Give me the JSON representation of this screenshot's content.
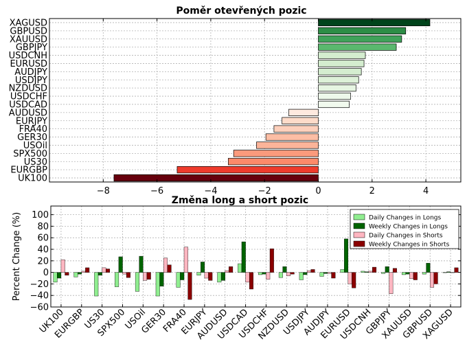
{
  "chart_data": [
    {
      "type": "bar",
      "orientation": "horizontal",
      "title": "Poměr otevřených pozic",
      "categories": [
        "XAGUSD",
        "GBPUSD",
        "XAUUSD",
        "GBPJPY",
        "USDCNH",
        "EURUSD",
        "AUDJPY",
        "USDJPY",
        "NZDUSD",
        "USDCHF",
        "USDCAD",
        "AUDUSD",
        "EURJPY",
        "FRA40",
        "GER30",
        "USOil",
        "SPX500",
        "US30",
        "EURGBP",
        "UK100"
      ],
      "values": [
        4.15,
        3.25,
        3.1,
        2.9,
        1.75,
        1.7,
        1.6,
        1.5,
        1.4,
        1.2,
        1.15,
        -1.1,
        -1.35,
        -1.65,
        -1.95,
        -2.3,
        -3.15,
        -3.35,
        -5.25,
        -7.6
      ],
      "colors": [
        "#00441b",
        "#2d8d46",
        "#40a25a",
        "#5ab86e",
        "#d4edcf",
        "#d4edcf",
        "#d4edcf",
        "#ddf1d8",
        "#e6f5e2",
        "#edf8ea",
        "#f1faee",
        "#fee9df",
        "#fddbc9",
        "#fdd0bc",
        "#fcbea5",
        "#fcb499",
        "#fb9a7c",
        "#fc8a6a",
        "#ef3b2c",
        "#67000d"
      ],
      "xlim": [
        -10,
        5.3
      ],
      "xticks": [
        -8,
        -6,
        -4,
        -2,
        0,
        2,
        4
      ],
      "xtick_labels": [
        "−8",
        "−6",
        "−4",
        "−2",
        "0",
        "2",
        "4"
      ],
      "grid": true
    },
    {
      "type": "bar",
      "title": "Změna long a short pozic",
      "ylabel": "Percent Change (%)",
      "ylim": [
        -60,
        115
      ],
      "yticks": [
        -60,
        -40,
        -20,
        0,
        20,
        40,
        60,
        80,
        100
      ],
      "ytick_labels": [
        "−60",
        "−40",
        "−20",
        "0",
        "20",
        "40",
        "60",
        "80",
        "100"
      ],
      "categories": [
        "UK100",
        "EURGBP",
        "US30",
        "SPX500",
        "USOil",
        "GER30",
        "FRA40",
        "EURJPY",
        "AUDUSD",
        "USDCAD",
        "USDCHF",
        "NZDUSD",
        "USDJPY",
        "AUDJPY",
        "EURUSD",
        "USDCNH",
        "GBPJPY",
        "XAUUSD",
        "GBPUSD",
        "XAGUSD"
      ],
      "series": [
        {
          "name": "Daily Changes in Longs",
          "color": "#90ee90",
          "values": [
            -17,
            -8,
            -41,
            -25,
            -33,
            -41,
            -26,
            -5,
            -17,
            15,
            -4,
            -9,
            -13,
            -7,
            5,
            2,
            -2,
            -4,
            -3,
            0
          ]
        },
        {
          "name": "Weekly Changes in Longs",
          "color": "#006400",
          "values": [
            -10,
            -3,
            -5,
            27,
            28,
            -24,
            -13,
            18,
            -14,
            53,
            -3,
            10,
            -4,
            -2,
            58,
            1,
            10,
            -3,
            16,
            1
          ]
        },
        {
          "name": "Daily Changes in Shorts",
          "color": "#ffb6c1",
          "values": [
            22,
            2,
            8,
            -3,
            -14,
            25,
            44,
            -10,
            3,
            -17,
            -12,
            -6,
            3,
            -2,
            -20,
            2,
            -37,
            -11,
            -26,
            0
          ]
        },
        {
          "name": "Weekly Changes in Shorts",
          "color": "#8b0000",
          "values": [
            -5,
            8,
            6,
            -9,
            -12,
            13,
            -47,
            -14,
            10,
            -29,
            41,
            -3,
            5,
            -10,
            -27,
            9,
            7,
            -13,
            -20,
            8
          ]
        }
      ],
      "legend_position": "top-right",
      "grid": true
    }
  ]
}
